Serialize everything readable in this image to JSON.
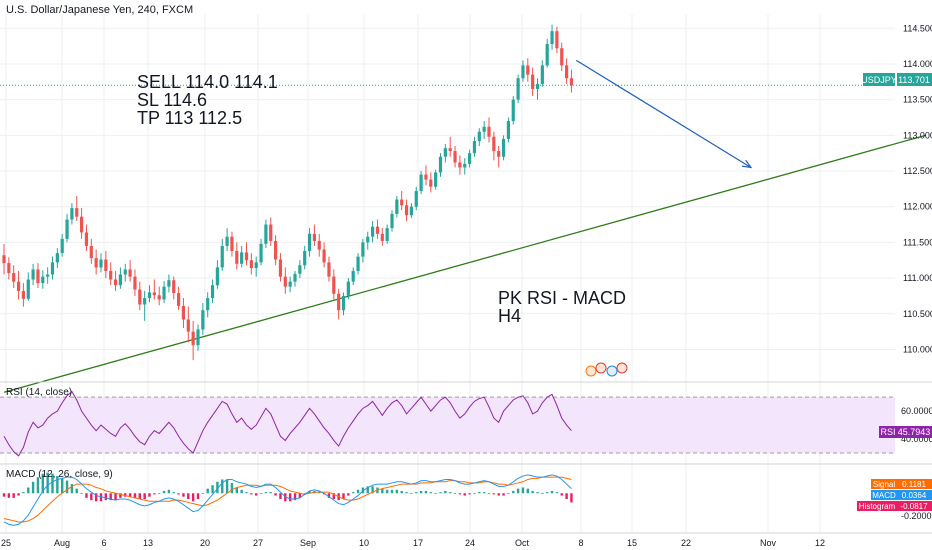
{
  "header": {
    "title": "U.S. Dollar/Japanese Yen, 240, FXCM"
  },
  "annotations": {
    "trade_lines": [
      "SELL 114.0 114.1",
      "SL 114.6",
      "TP 113 112.5"
    ],
    "method_lines": [
      "PK RSI - MACD",
      "H4"
    ]
  },
  "price_tag": {
    "symbol": "USDJPY",
    "value": "113.701"
  },
  "colors": {
    "up": "#26a69a",
    "down": "#ef5350",
    "trend": "#2e7d1a",
    "arrow": "#1f5fbf",
    "rsi_line": "#8e24aa",
    "rsi_band": "#f3e5fb",
    "macd": "#2196f3",
    "signal": "#ff6d00",
    "hist_pos": "#e91e63",
    "grid": "#eeeff2",
    "price_line": "#26a69a"
  },
  "chart_data": {
    "type": "candlestick",
    "price_axis": {
      "ticks": [
        "114.500",
        "114.000",
        "113.500",
        "113.000",
        "112.500",
        "112.000",
        "111.500",
        "111.000",
        "110.500",
        "110.000"
      ],
      "ylim": [
        109.6,
        114.7
      ]
    },
    "x_ticks": [
      "25",
      "Aug",
      "6",
      "13",
      "20",
      "27",
      "Sep",
      "10",
      "17",
      "24",
      "Oct",
      "8",
      "15",
      "22",
      "Nov",
      "12"
    ],
    "candles": [
      [
        111.32,
        111.48,
        111.05,
        111.21
      ],
      [
        111.21,
        111.29,
        110.98,
        111.07
      ],
      [
        111.07,
        111.18,
        110.86,
        110.95
      ],
      [
        110.95,
        111.1,
        110.7,
        110.82
      ],
      [
        110.82,
        110.93,
        110.6,
        110.71
      ],
      [
        110.71,
        111.08,
        110.68,
        110.98
      ],
      [
        110.98,
        111.2,
        110.9,
        111.12
      ],
      [
        111.12,
        111.21,
        110.86,
        110.93
      ],
      [
        110.93,
        111.11,
        110.85,
        111.02
      ],
      [
        111.02,
        111.15,
        110.92,
        111.05
      ],
      [
        111.05,
        111.3,
        110.98,
        111.22
      ],
      [
        111.22,
        111.42,
        111.14,
        111.35
      ],
      [
        111.35,
        111.62,
        111.3,
        111.55
      ],
      [
        111.55,
        111.9,
        111.5,
        111.82
      ],
      [
        111.82,
        112.05,
        111.75,
        111.98
      ],
      [
        111.98,
        112.15,
        111.8,
        111.86
      ],
      [
        111.86,
        111.98,
        111.55,
        111.64
      ],
      [
        111.64,
        111.75,
        111.38,
        111.45
      ],
      [
        111.45,
        111.55,
        111.2,
        111.28
      ],
      [
        111.28,
        111.4,
        111.05,
        111.15
      ],
      [
        111.15,
        111.35,
        111.08,
        111.26
      ],
      [
        111.26,
        111.38,
        111.0,
        111.1
      ],
      [
        111.1,
        111.22,
        110.9,
        110.98
      ],
      [
        110.98,
        111.1,
        110.82,
        110.9
      ],
      [
        110.9,
        111.15,
        110.85,
        111.05
      ],
      [
        111.05,
        111.2,
        110.95,
        111.12
      ],
      [
        111.12,
        111.25,
        110.95,
        111.02
      ],
      [
        111.02,
        111.12,
        110.75,
        110.84
      ],
      [
        110.84,
        110.95,
        110.55,
        110.63
      ],
      [
        110.63,
        110.82,
        110.4,
        110.72
      ],
      [
        110.72,
        110.9,
        110.66,
        110.8
      ],
      [
        110.8,
        110.98,
        110.7,
        110.76
      ],
      [
        110.76,
        110.88,
        110.62,
        110.7
      ],
      [
        110.7,
        110.96,
        110.65,
        110.88
      ],
      [
        110.88,
        111.05,
        110.8,
        110.97
      ],
      [
        110.97,
        111.02,
        110.7,
        110.79
      ],
      [
        110.79,
        110.88,
        110.55,
        110.61
      ],
      [
        110.61,
        110.72,
        110.3,
        110.42
      ],
      [
        110.42,
        110.6,
        110.1,
        110.25
      ],
      [
        110.25,
        110.4,
        109.85,
        110.06
      ],
      [
        110.06,
        110.35,
        109.98,
        110.28
      ],
      [
        110.28,
        110.65,
        110.2,
        110.55
      ],
      [
        110.55,
        110.8,
        110.45,
        110.72
      ],
      [
        110.72,
        110.98,
        110.65,
        110.9
      ],
      [
        110.9,
        111.25,
        110.85,
        111.15
      ],
      [
        111.15,
        111.55,
        111.1,
        111.45
      ],
      [
        111.45,
        111.7,
        111.38,
        111.58
      ],
      [
        111.58,
        111.65,
        111.3,
        111.38
      ],
      [
        111.38,
        111.5,
        111.12,
        111.2
      ],
      [
        111.2,
        111.45,
        111.15,
        111.36
      ],
      [
        111.36,
        111.5,
        111.18,
        111.25
      ],
      [
        111.25,
        111.35,
        111.05,
        111.14
      ],
      [
        111.14,
        111.3,
        111.02,
        111.22
      ],
      [
        111.22,
        111.55,
        111.18,
        111.48
      ],
      [
        111.48,
        111.82,
        111.42,
        111.75
      ],
      [
        111.75,
        111.85,
        111.45,
        111.52
      ],
      [
        111.52,
        111.6,
        111.18,
        111.26
      ],
      [
        111.26,
        111.35,
        110.95,
        111.02
      ],
      [
        111.02,
        111.15,
        110.78,
        110.88
      ],
      [
        110.88,
        111.02,
        110.8,
        110.95
      ],
      [
        110.95,
        111.1,
        110.88,
        111.06
      ],
      [
        111.06,
        111.25,
        111.0,
        111.18
      ],
      [
        111.18,
        111.45,
        111.12,
        111.38
      ],
      [
        111.38,
        111.7,
        111.3,
        111.62
      ],
      [
        111.62,
        111.75,
        111.45,
        111.52
      ],
      [
        111.52,
        111.62,
        111.3,
        111.4
      ],
      [
        111.4,
        111.5,
        111.15,
        111.22
      ],
      [
        111.22,
        111.3,
        110.95,
        111.02
      ],
      [
        111.02,
        111.12,
        110.7,
        110.78
      ],
      [
        110.78,
        110.85,
        110.42,
        110.55
      ],
      [
        110.55,
        110.8,
        110.48,
        110.75
      ],
      [
        110.75,
        111.0,
        110.7,
        110.95
      ],
      [
        110.95,
        111.15,
        110.9,
        111.1
      ],
      [
        111.1,
        111.35,
        111.05,
        111.3
      ],
      [
        111.3,
        111.55,
        111.22,
        111.5
      ],
      [
        111.5,
        111.65,
        111.4,
        111.58
      ],
      [
        111.58,
        111.8,
        111.5,
        111.72
      ],
      [
        111.72,
        111.82,
        111.55,
        111.62
      ],
      [
        111.62,
        111.7,
        111.45,
        111.52
      ],
      [
        111.52,
        111.75,
        111.48,
        111.7
      ],
      [
        111.7,
        111.95,
        111.65,
        111.9
      ],
      [
        111.9,
        112.15,
        111.85,
        112.1
      ],
      [
        112.1,
        112.22,
        111.95,
        112.02
      ],
      [
        112.02,
        112.1,
        111.8,
        111.88
      ],
      [
        111.88,
        112.05,
        111.84,
        112.0
      ],
      [
        112.0,
        112.28,
        111.95,
        112.22
      ],
      [
        112.22,
        112.5,
        112.18,
        112.45
      ],
      [
        112.45,
        112.58,
        112.3,
        112.38
      ],
      [
        112.38,
        112.48,
        112.2,
        112.28
      ],
      [
        112.28,
        112.52,
        112.24,
        112.48
      ],
      [
        112.48,
        112.75,
        112.42,
        112.7
      ],
      [
        112.7,
        112.88,
        112.62,
        112.82
      ],
      [
        112.82,
        112.98,
        112.7,
        112.78
      ],
      [
        112.78,
        112.85,
        112.55,
        112.62
      ],
      [
        112.62,
        112.72,
        112.45,
        112.55
      ],
      [
        112.55,
        112.68,
        112.45,
        112.6
      ],
      [
        112.6,
        112.8,
        112.55,
        112.75
      ],
      [
        112.75,
        112.98,
        112.7,
        112.92
      ],
      [
        112.92,
        113.1,
        112.85,
        113.05
      ],
      [
        113.05,
        113.2,
        112.95,
        113.12
      ],
      [
        113.12,
        113.25,
        112.9,
        112.98
      ],
      [
        112.98,
        113.05,
        112.65,
        112.78
      ],
      [
        112.78,
        112.85,
        112.55,
        112.7
      ],
      [
        112.7,
        113.0,
        112.65,
        112.95
      ],
      [
        112.95,
        113.25,
        112.9,
        113.2
      ],
      [
        113.2,
        113.55,
        113.15,
        113.5
      ],
      [
        113.5,
        113.85,
        113.45,
        113.8
      ],
      [
        113.8,
        114.05,
        113.75,
        113.98
      ],
      [
        113.98,
        114.08,
        113.75,
        113.85
      ],
      [
        113.85,
        113.95,
        113.55,
        113.65
      ],
      [
        113.65,
        113.8,
        113.5,
        113.72
      ],
      [
        113.72,
        114.05,
        113.68,
        113.98
      ],
      [
        113.98,
        114.35,
        113.95,
        114.28
      ],
      [
        114.28,
        114.55,
        114.2,
        114.46
      ],
      [
        114.46,
        114.52,
        114.15,
        114.22
      ],
      [
        114.22,
        114.3,
        113.9,
        113.98
      ],
      [
        113.98,
        114.08,
        113.72,
        113.8
      ],
      [
        113.8,
        113.92,
        113.6,
        113.7
      ]
    ],
    "trendline": {
      "from": [
        0,
        109.4
      ],
      "to": [
        190,
        113.0
      ]
    },
    "forecast_arrow": {
      "from": [
        118,
        114.05
      ],
      "to": [
        154,
        112.55
      ]
    },
    "rsi": {
      "label": "RSI (14, close)",
      "ticks": [
        "60.0000",
        "40.0000"
      ],
      "ylim": [
        25,
        78
      ],
      "band": [
        30,
        70
      ],
      "value": "45.7943",
      "values": [
        42,
        36,
        31,
        28,
        34,
        45,
        52,
        48,
        50,
        55,
        58,
        60,
        66,
        71,
        74,
        68,
        60,
        55,
        50,
        46,
        50,
        47,
        44,
        42,
        48,
        51,
        47,
        42,
        38,
        36,
        42,
        46,
        44,
        48,
        52,
        48,
        42,
        37,
        33,
        30,
        38,
        46,
        52,
        57,
        62,
        67,
        65,
        58,
        52,
        55,
        50,
        47,
        50,
        56,
        62,
        58,
        50,
        42,
        39,
        44,
        48,
        52,
        57,
        62,
        58,
        53,
        48,
        44,
        39,
        35,
        42,
        48,
        53,
        58,
        62,
        64,
        67,
        62,
        57,
        62,
        66,
        68,
        64,
        58,
        62,
        66,
        70,
        65,
        60,
        64,
        68,
        70,
        66,
        60,
        55,
        58,
        63,
        67,
        69,
        70,
        63,
        55,
        52,
        60,
        64,
        68,
        70,
        71,
        66,
        58,
        60,
        66,
        70,
        72,
        64,
        55,
        50,
        46
      ]
    },
    "macd": {
      "label": "MACD (12, 26, close, 9)",
      "ticks": [
        "0.0000",
        "-0.2000"
      ],
      "ylim": [
        -0.32,
        0.22
      ],
      "signal_label": "Signal",
      "signal_value": "0.1181",
      "macd_label": "MACD",
      "macd_value": "0.0364",
      "hist_label": "Histogram",
      "hist_value": "-0.0817",
      "values": [
        -0.25,
        -0.27,
        -0.28,
        -0.27,
        -0.24,
        -0.19,
        -0.12,
        -0.05,
        0.02,
        0.07,
        0.1,
        0.12,
        0.13,
        0.14,
        0.14,
        0.12,
        0.08,
        0.04,
        0.01,
        -0.02,
        -0.03,
        -0.04,
        -0.05,
        -0.06,
        -0.05,
        -0.05,
        -0.06,
        -0.08,
        -0.1,
        -0.11,
        -0.1,
        -0.08,
        -0.07,
        -0.05,
        -0.04,
        -0.05,
        -0.07,
        -0.1,
        -0.13,
        -0.16,
        -0.15,
        -0.11,
        -0.06,
        -0.01,
        0.04,
        0.09,
        0.12,
        0.12,
        0.1,
        0.09,
        0.08,
        0.06,
        0.05,
        0.06,
        0.08,
        0.08,
        0.05,
        0.01,
        -0.03,
        -0.05,
        -0.05,
        -0.04,
        -0.01,
        0.02,
        0.03,
        0.02,
        0.0,
        -0.03,
        -0.06,
        -0.09,
        -0.1,
        -0.08,
        -0.05,
        -0.02,
        0.02,
        0.05,
        0.07,
        0.08,
        0.08,
        0.08,
        0.09,
        0.1,
        0.1,
        0.09,
        0.08,
        0.09,
        0.11,
        0.11,
        0.1,
        0.1,
        0.11,
        0.12,
        0.12,
        0.11,
        0.09,
        0.08,
        0.08,
        0.09,
        0.1,
        0.11,
        0.1,
        0.08,
        0.06,
        0.06,
        0.07,
        0.1,
        0.13,
        0.15,
        0.16,
        0.15,
        0.14,
        0.14,
        0.15,
        0.16,
        0.15,
        0.12,
        0.08,
        0.04
      ],
      "signal": [
        -0.22,
        -0.23,
        -0.24,
        -0.25,
        -0.25,
        -0.24,
        -0.22,
        -0.19,
        -0.15,
        -0.11,
        -0.07,
        -0.03,
        0.0,
        0.03,
        0.06,
        0.08,
        0.08,
        0.08,
        0.07,
        0.05,
        0.04,
        0.02,
        0.01,
        0.0,
        -0.01,
        -0.02,
        -0.03,
        -0.04,
        -0.05,
        -0.06,
        -0.07,
        -0.07,
        -0.07,
        -0.07,
        -0.07,
        -0.06,
        -0.06,
        -0.07,
        -0.08,
        -0.09,
        -0.1,
        -0.11,
        -0.1,
        -0.08,
        -0.06,
        -0.03,
        0.0,
        0.03,
        0.05,
        0.06,
        0.07,
        0.07,
        0.07,
        0.06,
        0.07,
        0.07,
        0.07,
        0.06,
        0.04,
        0.02,
        0.01,
        0.0,
        -0.01,
        0.0,
        0.01,
        0.01,
        0.01,
        0.01,
        -0.01,
        -0.03,
        -0.05,
        -0.06,
        -0.06,
        -0.05,
        -0.03,
        -0.01,
        0.01,
        0.03,
        0.04,
        0.05,
        0.06,
        0.07,
        0.08,
        0.08,
        0.08,
        0.08,
        0.09,
        0.09,
        0.09,
        0.1,
        0.1,
        0.1,
        0.11,
        0.11,
        0.1,
        0.1,
        0.09,
        0.09,
        0.09,
        0.1,
        0.1,
        0.09,
        0.08,
        0.08,
        0.07,
        0.08,
        0.09,
        0.1,
        0.12,
        0.13,
        0.13,
        0.14,
        0.14,
        0.14,
        0.14,
        0.14,
        0.13,
        0.12
      ]
    }
  }
}
